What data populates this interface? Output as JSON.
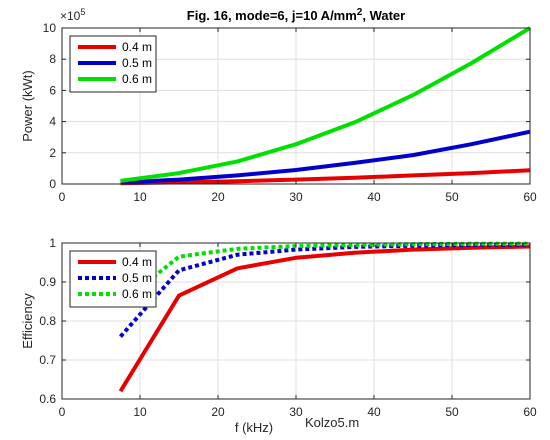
{
  "chart_data": [
    {
      "type": "line",
      "title": "Fig. 16, mode=6, j=10 A/mm",
      "title_superscript": "2",
      "title_suffix": ", Water",
      "xlabel": "",
      "ylabel": "Power (kWt)",
      "exponent_label": "×10",
      "exponent_power": "5",
      "xlim": [
        0,
        60
      ],
      "ylim": [
        0,
        10
      ],
      "xticks": [
        "0",
        "10",
        "20",
        "30",
        "40",
        "50",
        "60"
      ],
      "yticks": [
        "0",
        "2",
        "4",
        "6",
        "8",
        "10"
      ],
      "grid": true,
      "legend_position": "top-left",
      "x": [
        7.5,
        15,
        22.5,
        30,
        37.5,
        45,
        52.5,
        60
      ],
      "series": [
        {
          "name": "0.4 m",
          "color": "#e60000",
          "style": "solid",
          "values": [
            0.05,
            0.1,
            0.18,
            0.28,
            0.4,
            0.55,
            0.7,
            0.88
          ]
        },
        {
          "name": "0.5 m",
          "color": "#0000cc",
          "style": "solid",
          "values": [
            0.1,
            0.28,
            0.55,
            0.9,
            1.35,
            1.85,
            2.55,
            3.35
          ]
        },
        {
          "name": "0.6 m",
          "color": "#00e000",
          "style": "solid",
          "values": [
            0.2,
            0.7,
            1.45,
            2.55,
            3.95,
            5.7,
            7.75,
            10.0
          ]
        }
      ]
    },
    {
      "type": "line",
      "title": "",
      "xlabel": "f (kHz)",
      "ylabel": "Efficiency",
      "xlim": [
        0,
        60
      ],
      "ylim": [
        0.6,
        1.0
      ],
      "xticks": [
        "0",
        "10",
        "20",
        "30",
        "40",
        "50",
        "60"
      ],
      "yticks": [
        "0.6",
        "0.7",
        "0.8",
        "0.9",
        "1"
      ],
      "grid": true,
      "legend_position": "top-left",
      "x": [
        7.5,
        15,
        22.5,
        30,
        37.5,
        45,
        52.5,
        60
      ],
      "series": [
        {
          "name": "0.4 m",
          "color": "#e60000",
          "style": "solid",
          "values": [
            0.62,
            0.865,
            0.935,
            0.962,
            0.975,
            0.983,
            0.988,
            0.991
          ]
        },
        {
          "name": "0.5 m",
          "color": "#0000cc",
          "style": "dotted",
          "values": [
            0.76,
            0.93,
            0.97,
            0.983,
            0.99,
            0.993,
            0.995,
            0.996
          ]
        },
        {
          "name": "0.6 m",
          "color": "#00e000",
          "style": "dotted",
          "values": [
            0.845,
            0.965,
            0.985,
            0.992,
            0.995,
            0.997,
            0.998,
            0.998
          ]
        }
      ]
    }
  ],
  "footer_text": "Kolzo5.m"
}
